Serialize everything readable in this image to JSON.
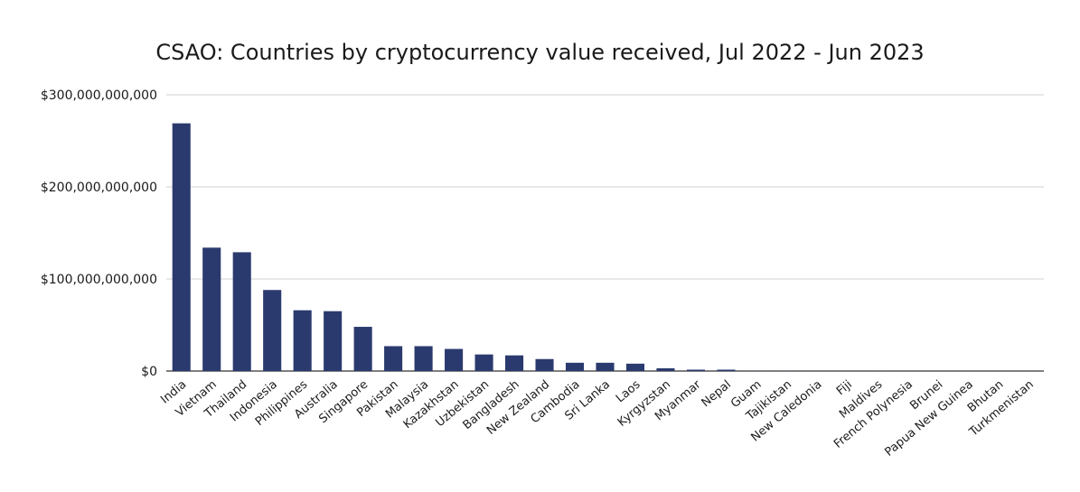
{
  "chart_data": {
    "type": "bar",
    "title": "CSAO: Countries by cryptocurrency value received, Jul 2022 - Jun 2023",
    "xlabel": "",
    "ylabel": "",
    "ylim": [
      0,
      300000000000
    ],
    "yticks": [
      {
        "value": 0,
        "label": "$0"
      },
      {
        "value": 100000000000,
        "label": "$100,000,000,000"
      },
      {
        "value": 200000000000,
        "label": "$200,000,000,000"
      },
      {
        "value": 300000000000,
        "label": "$300,000,000,000"
      }
    ],
    "grid": true,
    "bar_color": "#2b3a6e",
    "categories": [
      "India",
      "Vietnam",
      "Thailand",
      "Indonesia",
      "Philippines",
      "Australia",
      "Singapore",
      "Pakistan",
      "Malaysia",
      "Kazakhstan",
      "Uzbekistan",
      "Bangladesh",
      "New Zealand",
      "Cambodia",
      "Sri Lanka",
      "Laos",
      "Kyrgyzstan",
      "Myanmar",
      "Nepal",
      "Guam",
      "Tajikistan",
      "New Caledonia",
      "Fiji",
      "Maldives",
      "French Polynesia",
      "Brunei",
      "Papua New Guinea",
      "Bhutan",
      "Turkmenistan"
    ],
    "values": [
      269000000000,
      134000000000,
      129000000000,
      88000000000,
      66000000000,
      65000000000,
      48000000000,
      27000000000,
      27000000000,
      24000000000,
      18000000000,
      17000000000,
      13000000000,
      9000000000,
      9000000000,
      8000000000,
      3000000000,
      1500000000,
      1500000000,
      200000000,
      150000000,
      100000000,
      80000000,
      60000000,
      50000000,
      40000000,
      30000000,
      20000000,
      10000000
    ]
  }
}
